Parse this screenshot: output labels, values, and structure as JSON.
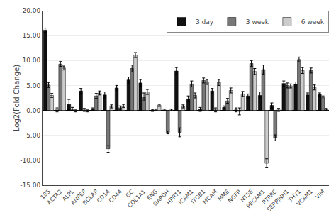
{
  "chart_data": {
    "type": "bar",
    "ylabel": "Log2(Fold Change)",
    "categories": [
      "18S",
      "ACTA2",
      "ALPL",
      "ANPEP",
      "BGLAP",
      "CD14",
      "CD44",
      "GC",
      "COL1A1",
      "ENG",
      "GAPDH",
      "HPRT1",
      "ICAM1",
      "ITGB1",
      "MCAM",
      "MME",
      "NGFR",
      "NT5E",
      "PECAM1",
      "PTPRC",
      "SERPINH1",
      "THY1",
      "VCAM1",
      "VIM"
    ],
    "series": [
      {
        "name": "3 day",
        "color": "#111111",
        "values": [
          16.1,
          0.1,
          1.2,
          3.9,
          0.2,
          3.1,
          4.5,
          6.1,
          5.5,
          0.0,
          0.1,
          7.9,
          2.3,
          0.2,
          3.9,
          0.6,
          0.1,
          2.9,
          3.0,
          1.0,
          5.4,
          5.2,
          3.1,
          3.2
        ],
        "errors": [
          0.4,
          0.4,
          1.0,
          0.5,
          0.3,
          0.6,
          0.5,
          0.6,
          0.7,
          0.2,
          0.2,
          0.7,
          0.6,
          0.4,
          0.5,
          0.3,
          0.4,
          0.4,
          0.7,
          0.5,
          0.5,
          0.5,
          0.4,
          0.3
        ]
      },
      {
        "name": "3 week",
        "color": "#777777",
        "values": [
          5.1,
          9.3,
          0.3,
          0.1,
          2.9,
          -7.7,
          0.5,
          8.4,
          2.7,
          0.1,
          -4.4,
          -4.4,
          5.3,
          6.0,
          0.1,
          1.9,
          -0.2,
          9.4,
          8.2,
          -5.5,
          5.0,
          10.2,
          8.0,
          2.6
        ],
        "errors": [
          0.5,
          0.5,
          0.3,
          0.3,
          0.5,
          0.7,
          0.4,
          0.7,
          0.8,
          0.2,
          0.3,
          0.9,
          0.6,
          0.5,
          0.4,
          0.5,
          0.7,
          0.6,
          0.9,
          0.6,
          0.5,
          0.5,
          0.5,
          0.3
        ]
      },
      {
        "name": "6 week",
        "color": "#cccccc",
        "values": [
          3.0,
          8.5,
          -0.1,
          -0.1,
          3.5,
          0.8,
          0.9,
          11.1,
          3.7,
          1.0,
          0.1,
          0.8,
          3.0,
          5.7,
          5.6,
          4.0,
          3.3,
          7.8,
          -10.6,
          0.1,
          4.9,
          8.0,
          4.6,
          0.2
        ],
        "errors": [
          0.4,
          0.4,
          0.2,
          0.2,
          0.4,
          0.3,
          0.3,
          0.5,
          0.5,
          0.2,
          0.2,
          0.3,
          0.5,
          0.5,
          0.6,
          0.5,
          0.5,
          0.6,
          0.9,
          0.3,
          0.4,
          0.6,
          0.5,
          0.2
        ]
      }
    ],
    "ylim": [
      -15.0,
      20.0
    ],
    "yticks": [
      {
        "value": -15.0,
        "label": "-15.00"
      },
      {
        "value": -10.0,
        "label": "-10.00"
      },
      {
        "value": -5.0,
        "label": "-5.00"
      },
      {
        "value": 0.0,
        "label": "0.00"
      },
      {
        "value": 5.0,
        "label": "5.00"
      },
      {
        "value": 10.0,
        "label": "10.00"
      },
      {
        "value": 15.0,
        "label": "15.00"
      },
      {
        "value": 20.0,
        "label": "20.00"
      }
    ],
    "grid": true,
    "legend": "upper right"
  }
}
